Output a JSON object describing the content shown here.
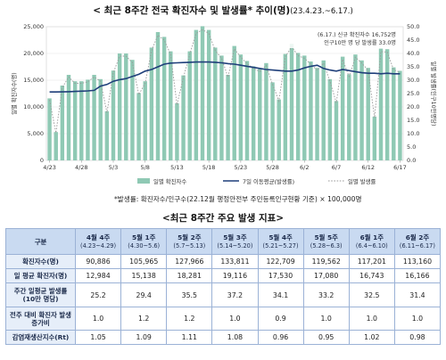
{
  "page": {
    "title": "< 최근 8주간 전국 확진자수 및 발생률* 추이(명)",
    "title_range": "(23.4.23.~6.17.)",
    "footnote": "*발생률: 확진자수/인구수(22.12월 행정안전부 주민등록인구현황 기준) × 100,000명",
    "table_title": "<최근 8주간 주요 발생 지표>"
  },
  "colors": {
    "bar": "#8fc9b4",
    "avg_line": "#1f3f7a",
    "rate_line": "#9a9a9a",
    "header_bg": "#c9daf1",
    "row_header_bg": "#e6eef9",
    "border": "#9bb2d6"
  },
  "chart_data": {
    "type": "bar",
    "ylabel": "일별 확진자수(명)",
    "y2label": "일별 발생률(인구10만명당)",
    "ylim": [
      0,
      25000
    ],
    "y2lim": [
      0,
      50
    ],
    "yticks": [
      0,
      5000,
      10000,
      15000,
      20000,
      25000
    ],
    "y2ticks": [
      0,
      5,
      10,
      15,
      20,
      25,
      30,
      35,
      40,
      45,
      50
    ],
    "xtick_labels": [
      "4/23",
      "4/28",
      "5/3",
      "5/8",
      "5/13",
      "5/18",
      "5/23",
      "5/28",
      "6/2",
      "6/7",
      "6/12",
      "6/17"
    ],
    "xtick_index": [
      0,
      5,
      10,
      15,
      20,
      25,
      30,
      35,
      40,
      45,
      50,
      55
    ],
    "annotation_1": "(6.17.) 신규 확진자수 16,752명",
    "annotation_2": "인구10만 명 당 발생률 33.0명",
    "grid": true,
    "legend_position": "bottom",
    "series": [
      {
        "name": "일별 확진자수",
        "kind": "bar",
        "axis": "left",
        "values": [
          11600,
          5300,
          14000,
          16000,
          14800,
          14800,
          15100,
          16000,
          15200,
          9200,
          16800,
          20000,
          20000,
          18800,
          12600,
          14800,
          21100,
          24000,
          23100,
          20400,
          10700,
          15900,
          20400,
          24400,
          25100,
          24400,
          21100,
          19600,
          16000,
          21400,
          19800,
          18600,
          17600,
          17100,
          18200,
          14600,
          11400,
          19900,
          21800,
          20100,
          19600,
          18500,
          17300,
          18700,
          15200,
          11100,
          19400,
          16100,
          19800,
          18700,
          17300,
          8200,
          20900,
          20800,
          17400,
          16752
        ]
      },
      {
        "name": "7일 이동평균(발생률)",
        "kind": "line",
        "axis": "left",
        "values": [
          12800,
          12800,
          12820,
          12850,
          12900,
          12950,
          13000,
          13100,
          13900,
          14200,
          14800,
          15100,
          15300,
          15700,
          16100,
          16700,
          17000,
          17500,
          18000,
          18200,
          18250,
          18300,
          18350,
          18400,
          18420,
          18400,
          18350,
          18250,
          18100,
          18000,
          17800,
          17600,
          17400,
          17200,
          17000,
          16900,
          16800,
          16700,
          16700,
          16900,
          17300,
          17600,
          17800,
          17200,
          16900,
          16700,
          17000,
          16800,
          16600,
          16400,
          16300,
          16300,
          16200,
          16300,
          16200,
          16200
        ]
      },
      {
        "name": "일별 발생률",
        "kind": "line-dashed",
        "axis": "right",
        "values": [
          22.6,
          10.3,
          27.3,
          31.2,
          28.8,
          28.8,
          29.4,
          31.2,
          29.6,
          17.9,
          32.7,
          39.0,
          39.0,
          36.6,
          24.6,
          28.8,
          41.1,
          46.8,
          45.0,
          39.7,
          20.8,
          31.0,
          39.7,
          47.5,
          48.9,
          47.5,
          41.1,
          38.2,
          31.2,
          41.7,
          38.6,
          36.2,
          34.3,
          33.3,
          35.5,
          28.4,
          22.2,
          38.8,
          42.5,
          39.2,
          38.2,
          36.0,
          33.7,
          36.4,
          29.6,
          21.6,
          37.8,
          31.4,
          38.6,
          36.4,
          33.7,
          16.0,
          40.7,
          40.5,
          33.9,
          33.0
        ]
      }
    ]
  },
  "table": {
    "corner": "구분",
    "columns": [
      {
        "label": "4월 4주",
        "period": "(4.23~4.29)"
      },
      {
        "label": "5월 1주",
        "period": "(4.30~5.6)"
      },
      {
        "label": "5월 2주",
        "period": "(5.7~5.13)"
      },
      {
        "label": "5월 3주",
        "period": "(5.14~5.20)"
      },
      {
        "label": "5월 4주",
        "period": "(5.21~5.27)"
      },
      {
        "label": "5월 5주",
        "period": "(5.28~6.3)"
      },
      {
        "label": "6월 1주",
        "period": "(6.4~6.10)"
      },
      {
        "label": "6월 2주",
        "period": "(6.11~6.17)"
      }
    ],
    "rows": [
      {
        "label": "확진자수(명)",
        "values": [
          "90,886",
          "105,965",
          "127,966",
          "133,811",
          "122,709",
          "119,562",
          "117,201",
          "113,160"
        ]
      },
      {
        "label": "일 평균 확진자(명)",
        "values": [
          "12,984",
          "15,138",
          "18,281",
          "19,116",
          "17,530",
          "17,080",
          "16,743",
          "16,166"
        ]
      },
      {
        "label": "주간 일평균 발생률(10만 명당)",
        "values": [
          "25.2",
          "29.4",
          "35.5",
          "37.2",
          "34.1",
          "33.2",
          "32.5",
          "31.4"
        ]
      },
      {
        "label": "전주 대비 확진자 발생 증가비",
        "values": [
          "1.0",
          "1.2",
          "1.2",
          "1.0",
          "0.9",
          "1.0",
          "1.0",
          "1.0"
        ]
      },
      {
        "label": "감염재생산지수(Rt)",
        "values": [
          "1.05",
          "1.09",
          "1.11",
          "1.08",
          "0.96",
          "0.95",
          "1.02",
          "0.98"
        ]
      }
    ]
  }
}
